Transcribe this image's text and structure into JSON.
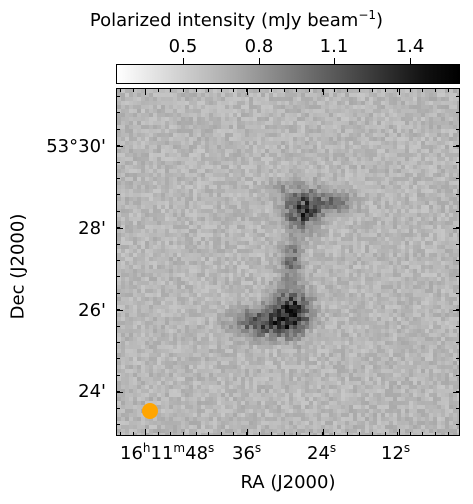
{
  "colorbar": {
    "title": "Polarized intensity (mJy beam",
    "title_sup": "−1",
    "title_close": ")",
    "ticks": [
      "0.5",
      "0.8",
      "1.1",
      "1.4"
    ],
    "range": [
      0.2,
      1.65
    ],
    "colormap": "gray_r"
  },
  "axes": {
    "xlabel": "RA (J2000)",
    "ylabel": "Dec (J2000)",
    "yticks": [
      "53°30'",
      "28'",
      "26'",
      "24'"
    ],
    "xticks": [
      {
        "h": "16",
        "h_unit": "h",
        "m": "11",
        "m_unit": "m",
        "s": "48",
        "s_unit": "s"
      },
      {
        "s": "36",
        "s_unit": "s"
      },
      {
        "s": "24",
        "s_unit": "s"
      },
      {
        "s": "12",
        "s_unit": "s"
      }
    ]
  },
  "beam": {
    "color": "#ffa500",
    "label": "beam"
  }
}
